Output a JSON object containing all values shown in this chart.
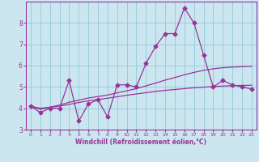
{
  "x": [
    0,
    1,
    2,
    3,
    4,
    5,
    6,
    7,
    8,
    9,
    10,
    11,
    12,
    13,
    14,
    15,
    16,
    17,
    18,
    19,
    20,
    21,
    22,
    23
  ],
  "y_main": [
    4.1,
    3.8,
    4.0,
    4.0,
    5.3,
    3.4,
    4.2,
    4.4,
    3.6,
    5.1,
    5.1,
    5.0,
    6.1,
    6.9,
    7.5,
    7.5,
    8.7,
    8.0,
    6.5,
    5.0,
    5.3,
    5.1,
    5.0,
    4.9
  ],
  "y_trend1": [
    4.1,
    3.95,
    4.05,
    4.15,
    4.28,
    4.38,
    4.48,
    4.55,
    4.62,
    4.72,
    4.82,
    4.92,
    5.05,
    5.18,
    5.32,
    5.44,
    5.57,
    5.68,
    5.78,
    5.85,
    5.9,
    5.93,
    5.95,
    5.97
  ],
  "y_trend2": [
    4.1,
    4.0,
    4.05,
    4.1,
    4.18,
    4.27,
    4.35,
    4.41,
    4.47,
    4.54,
    4.61,
    4.67,
    4.73,
    4.79,
    4.84,
    4.88,
    4.92,
    4.96,
    4.99,
    5.02,
    5.04,
    5.06,
    5.07,
    5.08
  ],
  "line_color": "#993399",
  "bg_color": "#cce6f0",
  "grid_color": "#99ccdd",
  "xlabel": "Windchill (Refroidissement éolien,°C)",
  "xlim": [
    -0.5,
    23.5
  ],
  "ylim": [
    3.0,
    9.0
  ],
  "yticks": [
    3,
    4,
    5,
    6,
    7,
    8
  ],
  "xticks": [
    0,
    1,
    2,
    3,
    4,
    5,
    6,
    7,
    8,
    9,
    10,
    11,
    12,
    13,
    14,
    15,
    16,
    17,
    18,
    19,
    20,
    21,
    22,
    23
  ]
}
